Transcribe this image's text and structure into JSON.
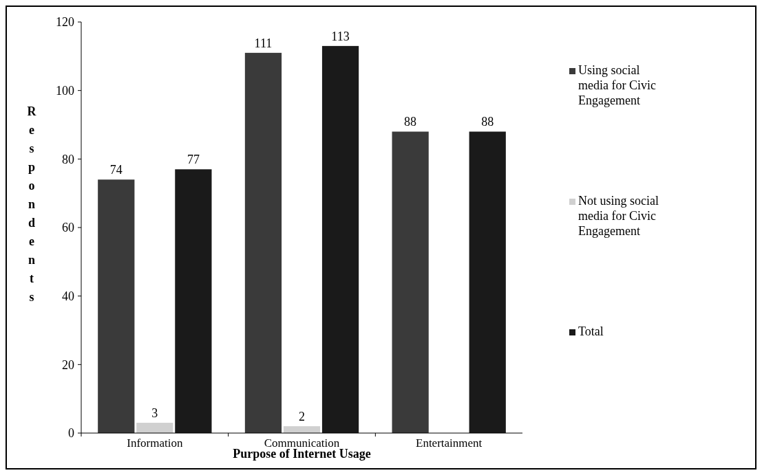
{
  "chart_data": {
    "type": "bar",
    "xlabel": "Purpose of Internet Usage",
    "ylabel": "Respondents",
    "categories": [
      "Information",
      "Communication",
      "Entertainment"
    ],
    "series": [
      {
        "name": "Using social media for Civic Engagement",
        "color": "#3a3a3a",
        "values": [
          74,
          111,
          88
        ],
        "value_labels": [
          "74",
          "111",
          "88"
        ]
      },
      {
        "name": "Not using social media for Civic Engagement",
        "color": "#d0d0d0",
        "values": [
          3,
          2,
          0
        ],
        "value_labels": [
          "3",
          "2",
          null
        ]
      },
      {
        "name": "Total",
        "color": "#1a1a1a",
        "values": [
          77,
          113,
          88
        ],
        "value_labels": [
          "77",
          "113",
          "88"
        ]
      }
    ],
    "ylim": [
      0,
      120
    ],
    "yticks": [
      0,
      20,
      40,
      60,
      80,
      100,
      120
    ],
    "grid": false,
    "legend": "right"
  }
}
